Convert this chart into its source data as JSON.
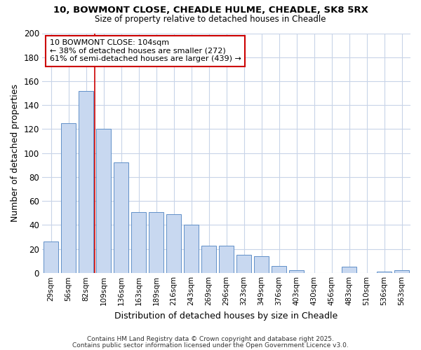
{
  "title1": "10, BOWMONT CLOSE, CHEADLE HULME, CHEADLE, SK8 5RX",
  "title2": "Size of property relative to detached houses in Cheadle",
  "xlabel": "Distribution of detached houses by size in Cheadle",
  "ylabel": "Number of detached properties",
  "bar_color": "#c8d8f0",
  "bar_edge_color": "#6090c8",
  "grid_color": "#c8d4e8",
  "annotation_box_color": "#cc0000",
  "vline_color": "#cc0000",
  "bg_color": "#ffffff",
  "categories": [
    "29sqm",
    "56sqm",
    "82sqm",
    "109sqm",
    "136sqm",
    "163sqm",
    "189sqm",
    "216sqm",
    "243sqm",
    "269sqm",
    "296sqm",
    "323sqm",
    "349sqm",
    "376sqm",
    "403sqm",
    "430sqm",
    "456sqm",
    "483sqm",
    "510sqm",
    "536sqm",
    "563sqm"
  ],
  "values": [
    26,
    125,
    152,
    120,
    92,
    51,
    51,
    49,
    40,
    23,
    23,
    15,
    14,
    6,
    2,
    0,
    0,
    5,
    0,
    1,
    2
  ],
  "vline_x_idx": 3,
  "annotation_text": "10 BOWMONT CLOSE: 104sqm\n← 38% of detached houses are smaller (272)\n61% of semi-detached houses are larger (439) →",
  "ylim": [
    0,
    200
  ],
  "yticks": [
    0,
    20,
    40,
    60,
    80,
    100,
    120,
    140,
    160,
    180,
    200
  ],
  "footer1": "Contains HM Land Registry data © Crown copyright and database right 2025.",
  "footer2": "Contains public sector information licensed under the Open Government Licence v3.0."
}
